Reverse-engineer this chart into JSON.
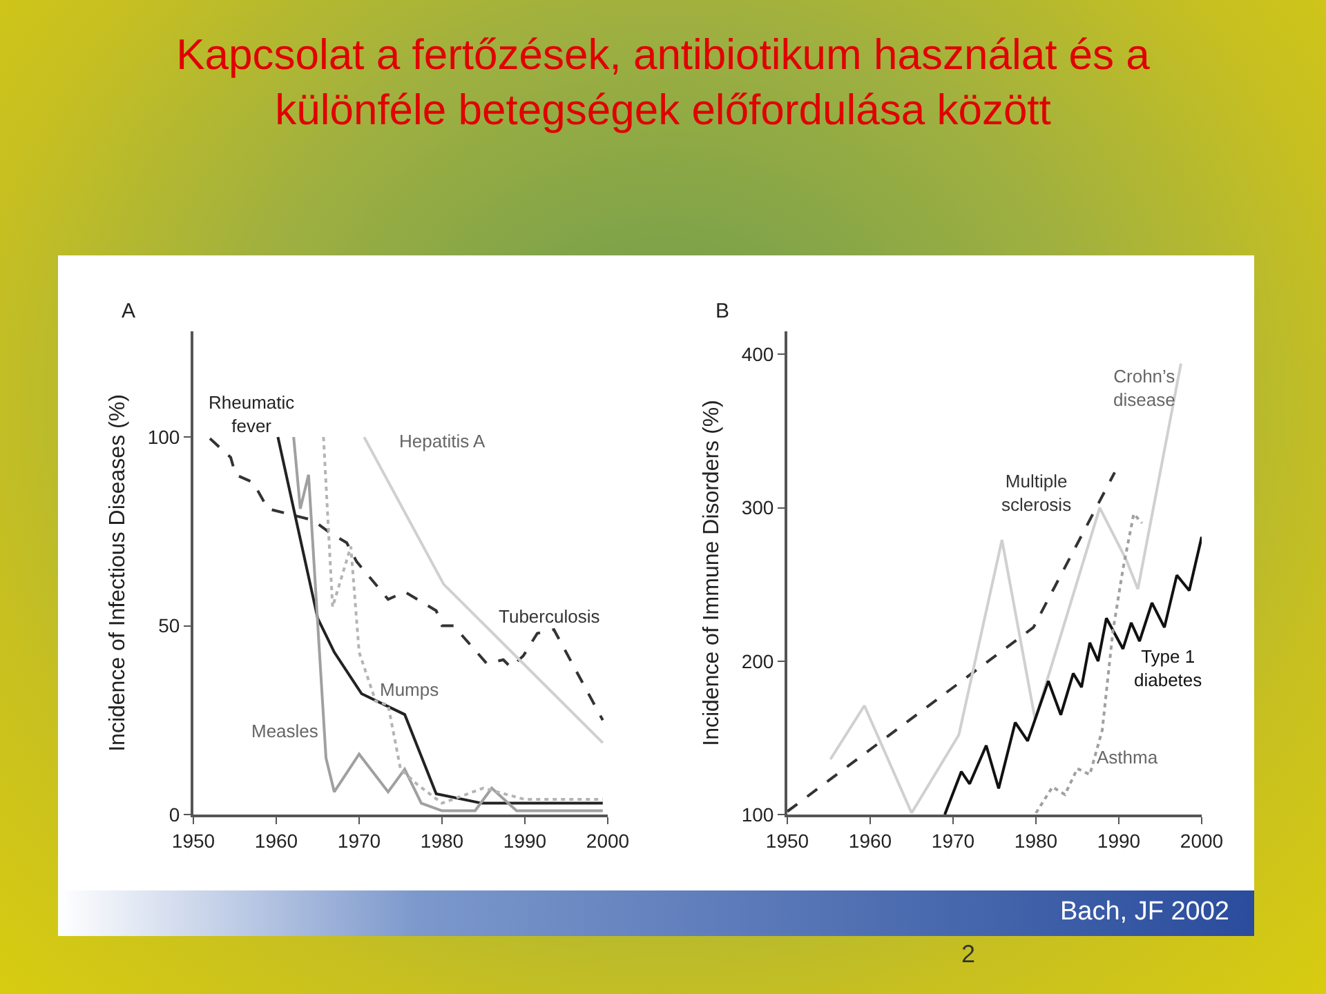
{
  "chart_data": [
    {
      "type": "line",
      "title": "Kapcsolat a fertőzések, antibiotikum használat és a különféle betegségek előfordulása között",
      "subtitle": "A",
      "ylabel": "Incidence of Infectious Diseases (%)",
      "xlim": [
        1950,
        2000
      ],
      "xticks": [
        1950,
        1960,
        1970,
        1980,
        1990,
        2000
      ],
      "ylim": [
        0,
        128
      ],
      "yticks": [
        0,
        50,
        100
      ],
      "grid": false,
      "legend": false,
      "marker": "none",
      "series": [
        {
          "name": "Tuberculosis",
          "color": "#333333",
          "line_style": "dashed",
          "x": [
            1952,
            1954.5,
            1955.1,
            1957.2,
            1959,
            1961.5,
            1964.4,
            1966.5,
            1968.5,
            1969.7,
            1973.5,
            1975.5,
            1979.3,
            1980,
            1981.4,
            1985.4,
            1987.4,
            1988.3,
            1989.8,
            1991.5,
            1993.5,
            1999.4
          ],
          "values": [
            99.6,
            94.6,
            90,
            88,
            81,
            79.6,
            78,
            74.6,
            72,
            67,
            57,
            59,
            54,
            50,
            50,
            40,
            41,
            39,
            42,
            48,
            49,
            25
          ]
        },
        {
          "name": "Rheumatic\nfever",
          "color": "#222222",
          "line_style": "solid",
          "x": [
            1960.2,
            1965,
            1967,
            1970.3,
            1975.5,
            1979.3,
            1984.8,
            1999.4
          ],
          "values": [
            100,
            52,
            43,
            32,
            26.5,
            5.5,
            3,
            3
          ]
        },
        {
          "name": "Measles",
          "color": "#a0a0a0",
          "line_style": "solid",
          "x": [
            1962.1,
            1962.9,
            1963.9,
            1966,
            1967,
            1970,
            1973.5,
            1975.5,
            1977.5,
            1980,
            1984,
            1986,
            1989,
            1999.4
          ],
          "values": [
            100,
            81,
            90,
            15,
            6,
            16,
            6,
            12,
            3,
            1,
            1,
            7,
            1,
            1
          ]
        },
        {
          "name": "Mumps",
          "color": "#b4b4b4",
          "line_style": "dotted",
          "x": [
            1965.7,
            1966.8,
            1969,
            1970,
            1972,
            1973.5,
            1975,
            1977,
            1980,
            1985,
            1990,
            1999.4
          ],
          "values": [
            100,
            55,
            71,
            43,
            30,
            29,
            12,
            8,
            3,
            7,
            4,
            4
          ]
        },
        {
          "name": "Hepatitis A",
          "color": "#d0d0d0",
          "line_style": "solid",
          "x": [
            1970.6,
            1980.2,
            1999.4
          ],
          "values": [
            100,
            61,
            19
          ]
        }
      ]
    },
    {
      "type": "line",
      "title": "B",
      "ylabel": "Incidence of Immune Disorders (%)",
      "xlim": [
        1950,
        2000
      ],
      "xticks": [
        1950,
        1960,
        1970,
        1980,
        1990,
        2000
      ],
      "ylim": [
        100,
        415
      ],
      "yticks": [
        100,
        200,
        300,
        400
      ],
      "grid": false,
      "legend": false,
      "marker": "none",
      "annotations": [
        "Bach, JF 2002",
        "2"
      ],
      "series": [
        {
          "name": "Multiple\nsclerosis",
          "color": "#333333",
          "line_style": "dashed",
          "x": [
            1950,
            1979.7,
            1989.5
          ],
          "values": [
            102,
            222,
            323
          ]
        },
        {
          "name": "Crohn’s\ndisease",
          "color": "#d0d0d0",
          "line_style": "solid",
          "x": [
            1955.2,
            1959.3,
            1965,
            1970.7,
            1975.9,
            1979.9,
            1987.7,
            1990.9,
            1992.3,
            1997.5
          ],
          "values": [
            136,
            171,
            101,
            152,
            279,
            162,
            300,
            266,
            247,
            394
          ]
        },
        {
          "name": "Type 1\ndiabetes",
          "color": "#111111",
          "line_style": "solid",
          "x": [
            1969,
            1971,
            1972,
            1974,
            1975.5,
            1977.5,
            1979,
            1981.5,
            1983,
            1984.5,
            1985.5,
            1986.5,
            1987.5,
            1988.5,
            1990.5,
            1991.5,
            1992.5,
            1994,
            1995.5,
            1997,
            1998.5,
            2000
          ],
          "values": [
            100,
            128,
            120,
            145,
            117,
            160,
            148,
            187,
            165,
            192,
            183,
            212,
            200,
            228,
            208,
            225,
            213,
            238,
            222,
            256,
            246,
            281
          ]
        },
        {
          "name": "Asthma",
          "color": "#a0a0a0",
          "line_style": "dotted",
          "x": [
            1980,
            1982,
            1983.5,
            1985,
            1986.5,
            1988,
            1989.3,
            1990.5,
            1991.8,
            1992.8
          ],
          "values": [
            101,
            118,
            113,
            130,
            126,
            155,
            220,
            260,
            296,
            290
          ]
        }
      ]
    }
  ]
}
